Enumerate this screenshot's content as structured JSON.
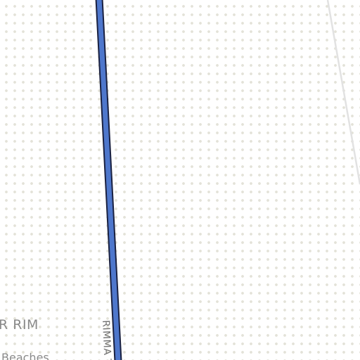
{
  "map": {
    "background_color": "#ffffff",
    "dot_pattern_color": "#e3e2d8",
    "road_fill_color": "#4e77cc",
    "road_casing_color": "#1a2140",
    "minor_line_color": "#e2e2e2",
    "labels": {
      "road": "RIMMA TR",
      "area_rim": "R RIM",
      "area_beaches": "Beaches"
    }
  }
}
